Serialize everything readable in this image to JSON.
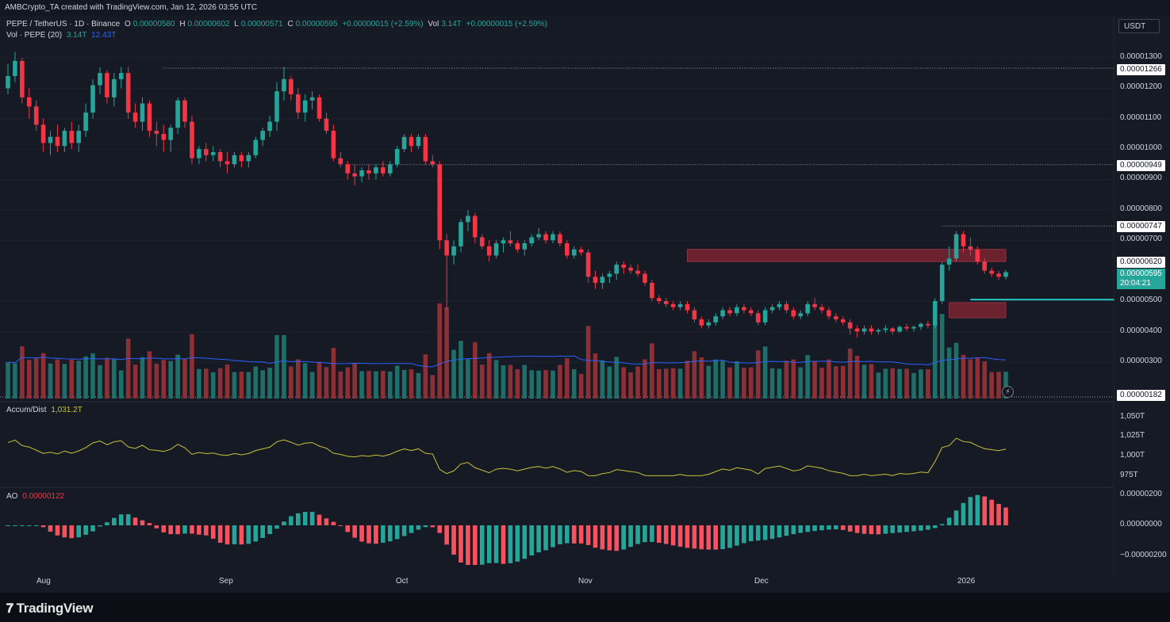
{
  "credit": "AMBCrypto_TA created with TradingView.com, Jan 12, 2026 03:55 UTC",
  "legend": {
    "symbol": "PEPE / TetherUS · 1D · Binance",
    "o_label": "O",
    "o_value": "0.00000580",
    "h_label": "H",
    "h_value": "0.00000602",
    "l_label": "L",
    "l_value": "0.00000571",
    "c_label": "C",
    "c_value": "0.00000595",
    "change": "+0.00000015 (+2.59%)",
    "vol_label": "Vol",
    "vol_value": "3.14T",
    "vol_change": "+0.00000015 (+2.59%)",
    "vol_ind": "Vol · PEPE (20)",
    "vol_ind_v1": "3.14T",
    "vol_ind_v2": "12.43T",
    "ad_label": "Accum/Dist",
    "ad_value": "1,031.2T",
    "ao_label": "AO",
    "ao_value": "0.00000122"
  },
  "currency_button": "USDT",
  "price_axis": {
    "ticks": [
      "0.00001300",
      "0.00001200",
      "0.00001100",
      "0.00001000",
      "0.00000900",
      "0.00000800",
      "0.00000700",
      "0.00000500",
      "0.00000400",
      "0.00000300"
    ],
    "tags": [
      "0.00001266",
      "0.00000949",
      "0.00000747",
      "0.00000620",
      "0.00000182"
    ],
    "current_price": "0.00000595",
    "countdown": "20:04:21"
  },
  "ad_axis": [
    "1,050T",
    "1,025T",
    "1,000T",
    "975T"
  ],
  "ao_axis": [
    "0.00000200",
    "0.00000000",
    "−0.00000200"
  ],
  "time_axis": [
    "Aug",
    "Sep",
    "Oct",
    "Nov",
    "Dec",
    "2026"
  ],
  "footer": {
    "brand": "TradingView",
    "lightning": "⚡"
  },
  "colors": {
    "up": "#26a69a",
    "down": "#f23645",
    "vol_ma": "#2962ff",
    "ad_line": "#c8c23a",
    "zone": "#7a2530",
    "teal_line": "#2bc4c4",
    "ao_up": "#26a69a",
    "ao_down": "#f7525f"
  },
  "chart_data": [
    {
      "type": "candlestick",
      "title": "PEPE / TetherUS · 1D · Binance",
      "ylim": [
        1.8e-06,
        1.36e-05
      ],
      "horizontal_levels": [
        1.266e-05,
        9.49e-06,
        7.47e-06,
        6.2e-06,
        1.82e-06
      ],
      "zones": [
        {
          "from_date": "2025-11-01",
          "to_date": "2026-01-10",
          "low": 6.3e-06,
          "high": 6.7e-06
        },
        {
          "from_date": "2025-12-08",
          "to_date": "2025-12-31",
          "low": 4.45e-06,
          "high": 4.95e-06
        }
      ],
      "trendline": {
        "from_date": "2025-12-11",
        "to_date": "2026-01-02",
        "value": 5.05e-06
      },
      "candles": [
        [
          1.2e-05,
          1.28e-05,
          1.18e-05,
          1.24e-05
        ],
        [
          1.24e-05,
          1.32e-05,
          1.22e-05,
          1.29e-05
        ],
        [
          1.29e-05,
          1.3e-05,
          1.15e-05,
          1.17e-05
        ],
        [
          1.17e-05,
          1.2e-05,
          1.1e-05,
          1.14e-05
        ],
        [
          1.14e-05,
          1.16e-05,
          1.06e-05,
          1.08e-05
        ],
        [
          1.08e-05,
          1.1e-05,
          9.9e-06,
          1.02e-05
        ],
        [
          1.02e-05,
          1.06e-05,
          9.8e-06,
          1.04e-05
        ],
        [
          1.04e-05,
          1.08e-05,
          9.9e-06,
          1.01e-05
        ],
        [
          1.01e-05,
          1.07e-05,
          9.9e-06,
          1.06e-05
        ],
        [
          1.06e-05,
          1.09e-05,
          1e-05,
          1.02e-05
        ],
        [
          1.02e-05,
          1.08e-05,
          9.9e-06,
          1.06e-05
        ],
        [
          1.06e-05,
          1.15e-05,
          1.04e-05,
          1.12e-05
        ],
        [
          1.12e-05,
          1.23e-05,
          1.1e-05,
          1.21e-05
        ],
        [
          1.21e-05,
          1.27e-05,
          1.18e-05,
          1.25e-05
        ],
        [
          1.25e-05,
          1.26e-05,
          1.15e-05,
          1.17e-05
        ],
        [
          1.17e-05,
          1.25e-05,
          1.14e-05,
          1.23e-05
        ],
        [
          1.23e-05,
          1.27e-05,
          1.2e-05,
          1.25e-05
        ],
        [
          1.25e-05,
          1.27e-05,
          1.1e-05,
          1.12e-05
        ],
        [
          1.12e-05,
          1.15e-05,
          1.07e-05,
          1.09e-05
        ],
        [
          1.09e-05,
          1.17e-05,
          1.06e-05,
          1.15e-05
        ],
        [
          1.15e-05,
          1.16e-05,
          1.04e-05,
          1.06e-05
        ],
        [
          1.06e-05,
          1.09e-05,
          1.01e-05,
          1.05e-05
        ],
        [
          1.05e-05,
          1.08e-05,
          9.9e-06,
          1.03e-05
        ],
        [
          1.03e-05,
          1.08e-05,
          9.9e-06,
          1.07e-05
        ],
        [
          1.07e-05,
          1.17e-05,
          1.05e-05,
          1.16e-05
        ],
        [
          1.16e-05,
          1.17e-05,
          1.07e-05,
          1.09e-05
        ],
        [
          1.09e-05,
          1.11e-05,
          9.5e-06,
          9.7e-06
        ],
        [
          9.7e-06,
          1.01e-05,
          9.5e-06,
          1e-05
        ],
        [
          1e-05,
          1.02e-05,
          9.6e-06,
          9.8e-06
        ],
        [
          9.8e-06,
          1.01e-05,
          9.6e-06,
          9.9e-06
        ],
        [
          9.9e-06,
          1e-05,
          9.4e-06,
          9.6e-06
        ],
        [
          9.6e-06,
          9.9e-06,
          9.2e-06,
          9.5e-06
        ],
        [
          9.5e-06,
          9.9e-06,
          9.4e-06,
          9.8e-06
        ],
        [
          9.8e-06,
          9.9e-06,
          9.4e-06,
          9.6e-06
        ],
        [
          9.6e-06,
          9.9e-06,
          9.4e-06,
          9.8e-06
        ],
        [
          9.8e-06,
          1.04e-05,
          9.7e-06,
          1.03e-05
        ],
        [
          1.03e-05,
          1.07e-05,
          1.01e-05,
          1.06e-05
        ],
        [
          1.06e-05,
          1.11e-05,
          1.04e-05,
          1.09e-05
        ],
        [
          1.09e-05,
          1.22e-05,
          1.06e-05,
          1.19e-05
        ],
        [
          1.19e-05,
          1.27e-05,
          1.16e-05,
          1.23e-05
        ],
        [
          1.23e-05,
          1.24e-05,
          1.16e-05,
          1.18e-05
        ],
        [
          1.18e-05,
          1.2e-05,
          1.1e-05,
          1.12e-05
        ],
        [
          1.12e-05,
          1.18e-05,
          1.09e-05,
          1.16e-05
        ],
        [
          1.16e-05,
          1.19e-05,
          1.13e-05,
          1.17e-05
        ],
        [
          1.17e-05,
          1.18e-05,
          1.09e-05,
          1.1e-05
        ],
        [
          1.1e-05,
          1.12e-05,
          1.05e-05,
          1.06e-05
        ],
        [
          1.06e-05,
          1.08e-05,
          9.6e-06,
          9.7e-06
        ],
        [
          9.7e-06,
          9.9e-06,
          9.4e-06,
          9.5e-06
        ],
        [
          9.5e-06,
          9.6e-06,
          9e-06,
          9.2e-06
        ],
        [
          9.2e-06,
          9.5e-06,
          8.8e-06,
          9.1e-06
        ],
        [
          9.1e-06,
          9.4e-06,
          8.9e-06,
          9.3e-06
        ],
        [
          9.3e-06,
          9.5e-06,
          9e-06,
          9.2e-06
        ],
        [
          9.2e-06,
          9.5e-06,
          9e-06,
          9.4e-06
        ],
        [
          9.4e-06,
          9.6e-06,
          9.1e-06,
          9.2e-06
        ],
        [
          9.2e-06,
          9.6e-06,
          9.1e-06,
          9.5e-06
        ],
        [
          9.5e-06,
          1.01e-05,
          9.4e-06,
          1e-05
        ],
        [
          1e-05,
          1.05e-05,
          9.9e-06,
          1.04e-05
        ],
        [
          1.04e-05,
          1.05e-05,
          9.9e-06,
          1.01e-05
        ],
        [
          1.01e-05,
          1.05e-05,
          1e-05,
          1.04e-05
        ],
        [
          1.04e-05,
          1.05e-05,
          9.5e-06,
          9.6e-06
        ],
        [
          9.6e-06,
          9.8e-06,
          9.4e-06,
          9.5e-06
        ],
        [
          9.5e-06,
          9.6e-06,
          6.7e-06,
          7e-06
        ],
        [
          7e-06,
          7.2e-06,
          4.7e-06,
          6.5e-06
        ],
        [
          6.5e-06,
          7e-06,
          6.2e-06,
          6.8e-06
        ],
        [
          6.8e-06,
          7.7e-06,
          6.6e-06,
          7.6e-06
        ],
        [
          7.6e-06,
          8e-06,
          7.3e-06,
          7.8e-06
        ],
        [
          7.8e-06,
          7.9e-06,
          6.9e-06,
          7.1e-06
        ],
        [
          7.1e-06,
          7.2e-06,
          6.7e-06,
          6.8e-06
        ],
        [
          6.8e-06,
          7e-06,
          6.3e-06,
          6.5e-06
        ],
        [
          6.5e-06,
          7e-06,
          6.4e-06,
          6.9e-06
        ],
        [
          6.9e-06,
          7.1e-06,
          6.6e-06,
          7e-06
        ],
        [
          7e-06,
          7.3e-06,
          6.8e-06,
          6.9e-06
        ],
        [
          6.9e-06,
          7e-06,
          6.6e-06,
          6.7e-06
        ],
        [
          6.7e-06,
          7e-06,
          6.5e-06,
          6.9e-06
        ],
        [
          6.9e-06,
          7.2e-06,
          6.8e-06,
          7.1e-06
        ],
        [
          7.1e-06,
          7.4e-06,
          7e-06,
          7.2e-06
        ],
        [
          7.2e-06,
          7.3e-06,
          6.9e-06,
          7e-06
        ],
        [
          7e-06,
          7.3e-06,
          6.9e-06,
          7.2e-06
        ],
        [
          7.2e-06,
          7.3e-06,
          6.8e-06,
          6.9e-06
        ],
        [
          6.9e-06,
          7e-06,
          6.4e-06,
          6.5e-06
        ],
        [
          6.5e-06,
          6.8e-06,
          6.4e-06,
          6.7e-06
        ],
        [
          6.7e-06,
          6.8e-06,
          6.5e-06,
          6.6e-06
        ],
        [
          6.6e-06,
          6.7e-06,
          5.6e-06,
          5.8e-06
        ],
        [
          5.8e-06,
          6e-06,
          5.4e-06,
          5.6e-06
        ],
        [
          5.6e-06,
          5.9e-06,
          5.4e-06,
          5.8e-06
        ],
        [
          5.8e-06,
          6e-06,
          5.6e-06,
          5.9e-06
        ],
        [
          5.9e-06,
          6.3e-06,
          5.7e-06,
          6.2e-06
        ],
        [
          6.2e-06,
          6.3e-06,
          5.9e-06,
          6.1e-06
        ],
        [
          6.1e-06,
          6.2e-06,
          5.9e-06,
          6e-06
        ],
        [
          6e-06,
          6.2e-06,
          5.8e-06,
          5.9e-06
        ],
        [
          5.9e-06,
          6e-06,
          5.5e-06,
          5.6e-06
        ],
        [
          5.6e-06,
          5.7e-06,
          5e-06,
          5.1e-06
        ],
        [
          5.1e-06,
          5.2e-06,
          4.9e-06,
          5e-06
        ],
        [
          5e-06,
          5.1e-06,
          4.8e-06,
          4.9e-06
        ],
        [
          4.9e-06,
          5e-06,
          4.7e-06,
          4.8e-06
        ],
        [
          4.8e-06,
          5e-06,
          4.7e-06,
          4.9e-06
        ],
        [
          4.9e-06,
          5e-06,
          4.6e-06,
          4.7e-06
        ],
        [
          4.7e-06,
          4.8e-06,
          4.3e-06,
          4.4e-06
        ],
        [
          4.4e-06,
          4.5e-06,
          4.1e-06,
          4.2e-06
        ],
        [
          4.2e-06,
          4.4e-06,
          4.1e-06,
          4.3e-06
        ],
        [
          4.3e-06,
          4.6e-06,
          4.2e-06,
          4.5e-06
        ],
        [
          4.5e-06,
          4.8e-06,
          4.4e-06,
          4.7e-06
        ],
        [
          4.7e-06,
          4.8e-06,
          4.5e-06,
          4.6e-06
        ],
        [
          4.6e-06,
          4.9e-06,
          4.5e-06,
          4.8e-06
        ],
        [
          4.8e-06,
          4.9e-06,
          4.6e-06,
          4.7e-06
        ],
        [
          4.7e-06,
          4.8e-06,
          4.5e-06,
          4.6e-06
        ],
        [
          4.6e-06,
          4.7e-06,
          4.2e-06,
          4.3e-06
        ],
        [
          4.3e-06,
          4.8e-06,
          4.2e-06,
          4.7e-06
        ],
        [
          4.7e-06,
          4.9e-06,
          4.6e-06,
          4.8e-06
        ],
        [
          4.8e-06,
          5e-06,
          4.7e-06,
          4.9e-06
        ],
        [
          4.9e-06,
          5e-06,
          4.6e-06,
          4.7e-06
        ],
        [
          4.7e-06,
          4.8e-06,
          4.4e-06,
          4.5e-06
        ],
        [
          4.5e-06,
          4.7e-06,
          4.4e-06,
          4.6e-06
        ],
        [
          4.6e-06,
          5e-06,
          4.5e-06,
          4.9e-06
        ],
        [
          4.9e-06,
          5.1e-06,
          4.7e-06,
          4.8e-06
        ],
        [
          4.8e-06,
          4.9e-06,
          4.6e-06,
          4.7e-06
        ],
        [
          4.7e-06,
          4.8e-06,
          4.4e-06,
          4.5e-06
        ],
        [
          4.5e-06,
          4.6e-06,
          4.3e-06,
          4.4e-06
        ],
        [
          4.4e-06,
          4.5e-06,
          4.2e-06,
          4.3e-06
        ],
        [
          4.3e-06,
          4.4e-06,
          3.9e-06,
          4.1e-06
        ],
        [
          4.1e-06,
          4.2e-06,
          3.8e-06,
          4e-06
        ],
        [
          4e-06,
          4.2e-06,
          3.9e-06,
          4.1e-06
        ],
        [
          4.1e-06,
          4.2e-06,
          3.9e-06,
          4e-06
        ],
        [
          4e-06,
          4.1e-06,
          3.9e-06,
          4.05e-06
        ],
        [
          4.05e-06,
          4.2e-06,
          3.95e-06,
          4.1e-06
        ],
        [
          4.1e-06,
          4.15e-06,
          3.9e-06,
          4e-06
        ],
        [
          4e-06,
          4.2e-06,
          3.95e-06,
          4.15e-06
        ],
        [
          4.15e-06,
          4.25e-06,
          4e-06,
          4.1e-06
        ],
        [
          4.1e-06,
          4.2e-06,
          4e-06,
          4.15e-06
        ],
        [
          4.15e-06,
          4.3e-06,
          4.05e-06,
          4.25e-06
        ],
        [
          4.25e-06,
          4.35e-06,
          4.1e-06,
          4.2e-06
        ],
        [
          4.2e-06,
          5.1e-06,
          4.1e-06,
          5e-06
        ],
        [
          5e-06,
          6.3e-06,
          4.9e-06,
          6.2e-06
        ],
        [
          6.2e-06,
          6.8e-06,
          6e-06,
          6.4e-06
        ],
        [
          6.4e-06,
          7.3e-06,
          6.3e-06,
          7.2e-06
        ],
        [
          7.2e-06,
          7.3e-06,
          6.6e-06,
          6.8e-06
        ],
        [
          6.8e-06,
          7.1e-06,
          6.5e-06,
          6.7e-06
        ],
        [
          6.7e-06,
          6.8e-06,
          6.2e-06,
          6.3e-06
        ],
        [
          6.3e-06,
          6.4e-06,
          5.9e-06,
          6e-06
        ],
        [
          6e-06,
          6.1e-06,
          5.8e-06,
          5.9e-06
        ],
        [
          5.9e-06,
          6e-06,
          5.7e-06,
          5.8e-06
        ],
        [
          5.8e-06,
          6.02e-06,
          5.71e-06,
          5.95e-06
        ]
      ]
    },
    {
      "type": "bar",
      "title": "Vol · PEPE (20)",
      "description_of_values": "daily volume (T), with 20-period moving average",
      "last_value": "3.14T",
      "ma_value": "12.43T"
    },
    {
      "type": "line",
      "title": "Accum/Dist",
      "ylim": [
        965,
        1075
      ],
      "last_value": "1,031.2T"
    },
    {
      "type": "bar",
      "title": "AO",
      "ylim": [
        -2.8e-06,
        2.4e-06
      ],
      "last_value": "0.00000122"
    }
  ]
}
